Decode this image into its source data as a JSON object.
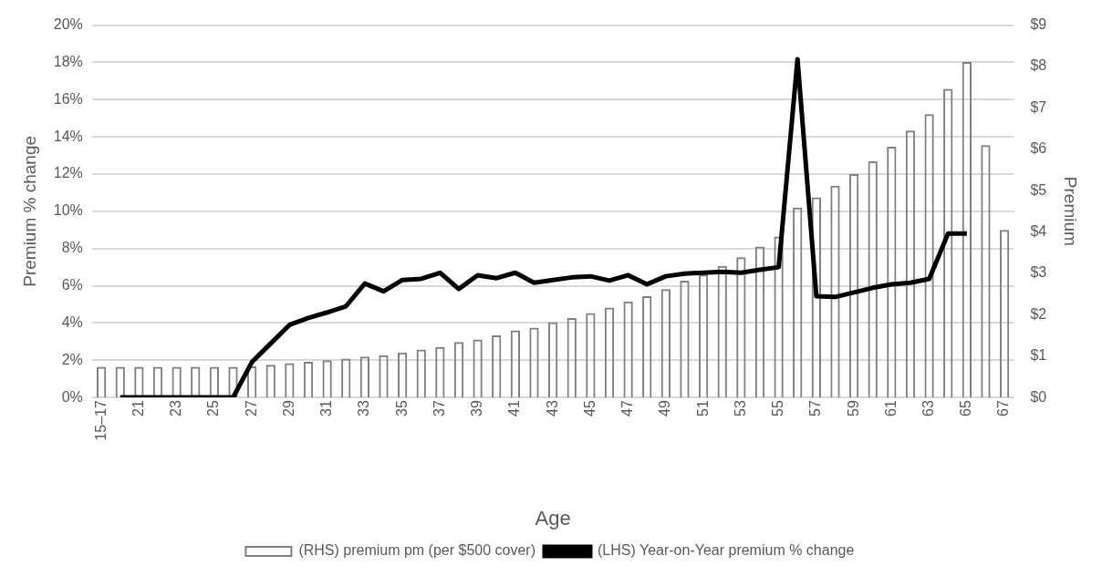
{
  "chart_data": {
    "type": "bar",
    "xlabel": "Age",
    "ylabel": "Premium % change",
    "y2label": "Premium",
    "categories": [
      "15–17",
      null,
      "21",
      null,
      "23",
      null,
      "25",
      null,
      "27",
      null,
      "29",
      null,
      "31",
      null,
      "33",
      null,
      "35",
      null,
      "37",
      null,
      "39",
      null,
      "41",
      null,
      "43",
      null,
      "45",
      null,
      "47",
      null,
      "49",
      null,
      "51",
      null,
      "53",
      null,
      "55",
      null,
      "57",
      null,
      "59",
      null,
      "61",
      null,
      "63",
      null,
      "65",
      null,
      "67"
    ],
    "series": [
      {
        "name": "(RHS) premium pm (per $500 cover)",
        "axis": "y2",
        "color": "#808080",
        "values": [
          0.74,
          0.74,
          0.74,
          0.74,
          0.74,
          0.74,
          0.74,
          0.74,
          0.75,
          0.79,
          0.83,
          0.86,
          0.9,
          0.94,
          0.99,
          1.02,
          1.09,
          1.16,
          1.22,
          1.34,
          1.4,
          1.5,
          1.62,
          1.69,
          1.82,
          1.92,
          2.04,
          2.17,
          2.32,
          2.45,
          2.62,
          2.82,
          2.97,
          3.18,
          3.39,
          3.65,
          3.89,
          4.59,
          4.84,
          5.12,
          5.4,
          5.71,
          6.06,
          6.45,
          6.85,
          7.46,
          8.11,
          6.1,
          4.05
        ]
      },
      {
        "name": "(LHS) Year-on-Year premium % change",
        "type": "line",
        "color": "#000000",
        "values": [
          null,
          0,
          0,
          0,
          0,
          0,
          0,
          0,
          1.9,
          2.9,
          3.9,
          4.27,
          4.57,
          4.9,
          6.12,
          5.7,
          6.31,
          6.37,
          6.7,
          5.83,
          6.57,
          6.41,
          6.7,
          6.16,
          6.31,
          6.45,
          6.51,
          6.28,
          6.57,
          6.08,
          6.51,
          6.65,
          6.7,
          6.75,
          6.7,
          6.86,
          7.0,
          18.17,
          5.44,
          5.4,
          5.64,
          5.89,
          6.08,
          6.16,
          6.37,
          8.8,
          8.8,
          null,
          null
        ]
      }
    ],
    "ylim": [
      0,
      20
    ],
    "yticks": [
      {
        "value": 0,
        "label": "0%"
      },
      {
        "value": 2,
        "label": "2%"
      },
      {
        "value": 4,
        "label": "4%"
      },
      {
        "value": 6,
        "label": "6%"
      },
      {
        "value": 8,
        "label": "8%"
      },
      {
        "value": 10,
        "label": "10%"
      },
      {
        "value": 12,
        "label": "12%"
      },
      {
        "value": 14,
        "label": "14%"
      },
      {
        "value": 16,
        "label": "16%"
      },
      {
        "value": 18,
        "label": "18%"
      },
      {
        "value": 20,
        "label": "20%"
      }
    ],
    "y2lim": [
      0,
      9
    ],
    "y2ticks": [
      {
        "value": 0,
        "label": "$0"
      },
      {
        "value": 1,
        "label": "$1"
      },
      {
        "value": 2,
        "label": "$2"
      },
      {
        "value": 3,
        "label": "$3"
      },
      {
        "value": 4,
        "label": "$4"
      },
      {
        "value": 5,
        "label": "$5"
      },
      {
        "value": 6,
        "label": "$6"
      },
      {
        "value": 7,
        "label": "$7"
      },
      {
        "value": 8,
        "label": "$8"
      },
      {
        "value": 9,
        "label": "$9"
      }
    ],
    "grid": "y",
    "legend": "bottom",
    "marker": "none"
  }
}
